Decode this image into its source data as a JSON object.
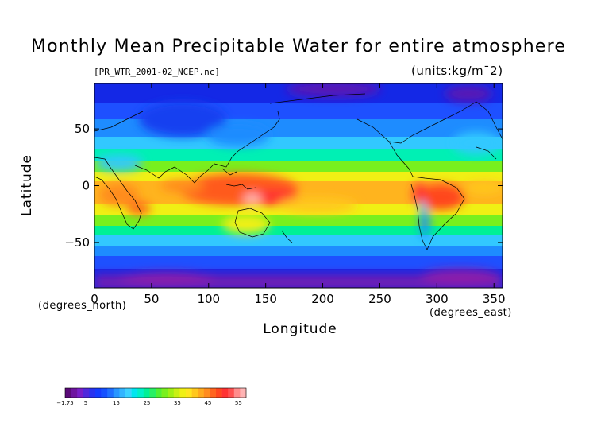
{
  "title": "Monthly Mean Precipitable Water for entire atmosphere",
  "file_name": "[PR_WTR_2001-02_NCEP.nc]",
  "units_label": "(units:kg/m¯2)",
  "axes": {
    "xlabel": "Longitude",
    "ylabel": "Latitude",
    "x_unit": "(degrees_east)",
    "y_unit": "(degrees_north)",
    "x_range": [
      0,
      357.5
    ],
    "y_range": [
      -90,
      90
    ],
    "x_ticks": [
      "0",
      "50",
      "100",
      "150",
      "200",
      "250",
      "300",
      "350"
    ],
    "y_ticks": [
      "50",
      "0",
      "−50"
    ]
  },
  "chart_data": {
    "type": "heatmap",
    "title": "Monthly Mean Precipitable Water for entire atmosphere",
    "xlabel": "Longitude",
    "ylabel": "Latitude",
    "xlim": [
      0,
      357.5
    ],
    "ylim": [
      -90,
      90
    ],
    "units": "kg/m^2",
    "colorbar": {
      "min": -1.75,
      "max": 57.5,
      "tick_labels": [
        "−1.75",
        "5",
        "15",
        "25",
        "35",
        "45",
        "55"
      ],
      "tick_values": [
        -1.75,
        5,
        15,
        25,
        35,
        45,
        55
      ],
      "colors": [
        "#5a0a78",
        "#6e14a0",
        "#781ec8",
        "#5028dc",
        "#2832f0",
        "#143cff",
        "#1450ff",
        "#1e6eff",
        "#2896ff",
        "#32b4ff",
        "#3cd2ff",
        "#00e6f0",
        "#00f0c8",
        "#00f096",
        "#28f064",
        "#50f032",
        "#78f01e",
        "#a0f014",
        "#c8f014",
        "#f0f014",
        "#ffe61e",
        "#ffc81e",
        "#ffaa1e",
        "#ff8c1e",
        "#ff641e",
        "#ff461e",
        "#ff3232",
        "#ff5050",
        "#ff8c8c",
        "#ffb4b4"
      ]
    },
    "note_features": [
      "tropical maximum over western Pacific / Maritime Continent",
      "Amazon basin maximum",
      "dry polar regions"
    ]
  }
}
